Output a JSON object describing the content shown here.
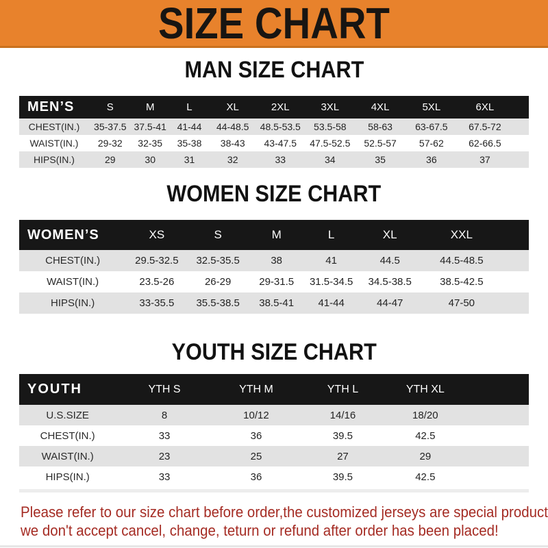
{
  "banner": {
    "title": "SIZE CHART"
  },
  "sections": [
    {
      "heading": "MAN SIZE CHART",
      "corner": "MEN’S",
      "columns": [
        "S",
        "M",
        "L",
        "XL",
        "2XL",
        "3XL",
        "4XL",
        "5XL",
        "6XL"
      ],
      "rows": [
        {
          "label": "CHEST(IN.)",
          "values": [
            "35-37.5",
            "37.5-41",
            "41-44",
            "44-48.5",
            "48.5-53.5",
            "53.5-58",
            "58-63",
            "63-67.5",
            "67.5-72"
          ]
        },
        {
          "label": "WAIST(IN.)",
          "values": [
            "29-32",
            "32-35",
            "35-38",
            "38-43",
            "43-47.5",
            "47.5-52.5",
            "52.5-57",
            "57-62",
            "62-66.5"
          ]
        },
        {
          "label": "HIPS(IN.)",
          "values": [
            "29",
            "30",
            "31",
            "32",
            "33",
            "34",
            "35",
            "36",
            "37"
          ]
        }
      ]
    },
    {
      "heading": "WOMEN SIZE CHART",
      "corner": "WOMEN’S",
      "columns": [
        "XS",
        "S",
        "M",
        "L",
        "XL",
        "XXL"
      ],
      "rows": [
        {
          "label": "CHEST(IN.)",
          "values": [
            "29.5-32.5",
            "32.5-35.5",
            "38",
            "41",
            "44.5",
            "44.5-48.5"
          ]
        },
        {
          "label": "WAIST(IN.)",
          "values": [
            "23.5-26",
            "26-29",
            "29-31.5",
            "31.5-34.5",
            "34.5-38.5",
            "38.5-42.5"
          ]
        },
        {
          "label": "HIPS(IN.)",
          "values": [
            "33-35.5",
            "35.5-38.5",
            "38.5-41",
            "41-44",
            "44-47",
            "47-50"
          ]
        }
      ]
    },
    {
      "heading": "YOUTH SIZE CHART",
      "corner": "YOUTH",
      "columns": [
        "YTH S",
        "YTH M",
        "YTH L",
        "YTH XL"
      ],
      "rows": [
        {
          "label": "U.S.SIZE",
          "values": [
            "8",
            "10/12",
            "14/16",
            "18/20"
          ]
        },
        {
          "label": "CHEST(IN.)",
          "values": [
            "33",
            "36",
            "39.5",
            "42.5"
          ]
        },
        {
          "label": "WAIST(IN.)",
          "values": [
            "23",
            "25",
            "27",
            "29"
          ]
        },
        {
          "label": "HIPS(IN.)",
          "values": [
            "33",
            "36",
            "39.5",
            "42.5"
          ]
        }
      ]
    }
  ],
  "disclaimer": {
    "line1": "Please refer to our size chart before order,the customized jerseys are special products,",
    "line2": "we don't accept cancel, change, teturn or refund after order has been placed!"
  },
  "colors": {
    "banner_bg": "#E8822C",
    "banner_edge": "#C9711F",
    "header_bg": "#171717",
    "row_alt": "#E2E2E2",
    "disclaimer": "#A52C24"
  }
}
